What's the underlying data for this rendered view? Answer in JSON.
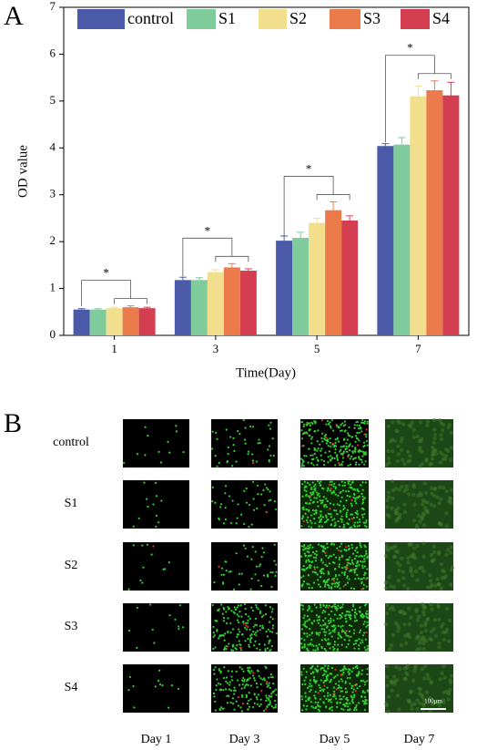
{
  "panel_labels": [
    "A",
    "B"
  ],
  "chart_data": {
    "type": "bar",
    "x_label": "Time(Day)",
    "y_label": "OD value",
    "categories": [
      "1",
      "3",
      "5",
      "7"
    ],
    "series": [
      {
        "name": "control",
        "color": "#4b5aa8",
        "values": [
          0.55,
          1.18,
          2.02,
          4.04
        ],
        "errors": [
          0.02,
          0.06,
          0.1,
          0.05
        ]
      },
      {
        "name": "S1",
        "color": "#7fcb9b",
        "values": [
          0.55,
          1.18,
          2.08,
          4.07
        ],
        "errors": [
          0.02,
          0.05,
          0.12,
          0.15
        ]
      },
      {
        "name": "S2",
        "color": "#f2df8e",
        "values": [
          0.58,
          1.35,
          2.4,
          5.1
        ],
        "errors": [
          0.02,
          0.05,
          0.1,
          0.22
        ]
      },
      {
        "name": "S3",
        "color": "#ec7b4c",
        "values": [
          0.6,
          1.45,
          2.67,
          5.23
        ],
        "errors": [
          0.03,
          0.08,
          0.18,
          0.2
        ]
      },
      {
        "name": "S4",
        "color": "#d33f50",
        "values": [
          0.58,
          1.38,
          2.45,
          5.12
        ],
        "errors": [
          0.02,
          0.04,
          0.1,
          0.28
        ]
      }
    ],
    "annotations": [
      "*",
      "*",
      "*",
      "*"
    ],
    "ylim": [
      0,
      7
    ],
    "yticks": [
      0,
      1,
      2,
      3,
      4,
      5,
      6,
      7
    ]
  },
  "panel_b": {
    "rows": [
      "control",
      "S1",
      "S2",
      "S3",
      "S4"
    ],
    "columns": [
      "Day 1",
      "Day 3",
      "Day 5",
      "Day 7"
    ],
    "scale_bar": "100μm"
  }
}
